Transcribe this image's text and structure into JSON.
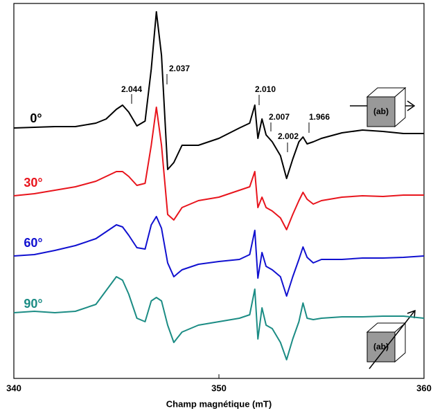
{
  "chart_data": {
    "type": "line",
    "x_label": "Champ magnétique (mT)",
    "x": [
      340,
      341,
      342,
      343,
      344,
      344.5,
      345,
      345.3,
      345.6,
      346,
      346.4,
      346.7,
      346.95,
      347.2,
      347.5,
      347.8,
      348.2,
      349,
      350,
      351,
      351.5,
      351.75,
      351.9,
      352.1,
      352.3,
      352.6,
      353,
      353.3,
      353.6,
      353.9,
      354.1,
      354.3,
      354.6,
      355,
      356,
      357,
      358,
      359,
      360
    ],
    "xlim": [
      340,
      360
    ],
    "xticks": [
      340,
      350,
      360
    ],
    "ylim": [
      0,
      542
    ],
    "series": [
      {
        "name": "0°",
        "color": "#000000",
        "values": [
          362,
          363,
          364,
          364,
          369,
          375,
          389,
          395,
          385,
          365,
          372,
          447,
          530,
          467,
          302,
          312,
          337,
          337,
          347,
          362,
          369,
          395,
          347,
          375,
          352,
          342,
          322,
          289,
          317,
          342,
          349,
          339,
          342,
          347,
          355,
          359,
          357,
          354,
          354
        ]
      },
      {
        "name": "30°",
        "color": "#e8141c",
        "values": [
          264,
          267,
          272,
          277,
          285,
          292,
          299,
          299,
          292,
          279,
          282,
          337,
          392,
          337,
          237,
          229,
          247,
          257,
          262,
          272,
          277,
          299,
          247,
          262,
          247,
          242,
          232,
          215,
          237,
          257,
          269,
          259,
          252,
          257,
          262,
          264,
          263,
          265,
          265
        ]
      },
      {
        "name": "60°",
        "color": "#1010d0",
        "values": [
          177,
          179,
          185,
          192,
          202,
          212,
          222,
          219,
          207,
          189,
          187,
          222,
          234,
          217,
          167,
          147,
          157,
          165,
          169,
          172,
          179,
          214,
          145,
          182,
          162,
          157,
          147,
          119,
          147,
          172,
          190,
          175,
          167,
          172,
          172,
          174,
          174,
          175,
          177
        ]
      },
      {
        "name": "90°",
        "color": "#1b8c84",
        "values": [
          95,
          97,
          95,
          97,
          107,
          127,
          147,
          142,
          122,
          87,
          82,
          112,
          117,
          112,
          77,
          52,
          67,
          77,
          82,
          87,
          92,
          129,
          57,
          102,
          77,
          72,
          52,
          27,
          57,
          82,
          109,
          87,
          85,
          87,
          89,
          89,
          90,
          90,
          87
        ]
      }
    ],
    "annotations": [
      "2.044",
      "2.037",
      "2.010",
      "2.007",
      "2.002",
      "1.966"
    ],
    "cube_label": "(ab)"
  }
}
